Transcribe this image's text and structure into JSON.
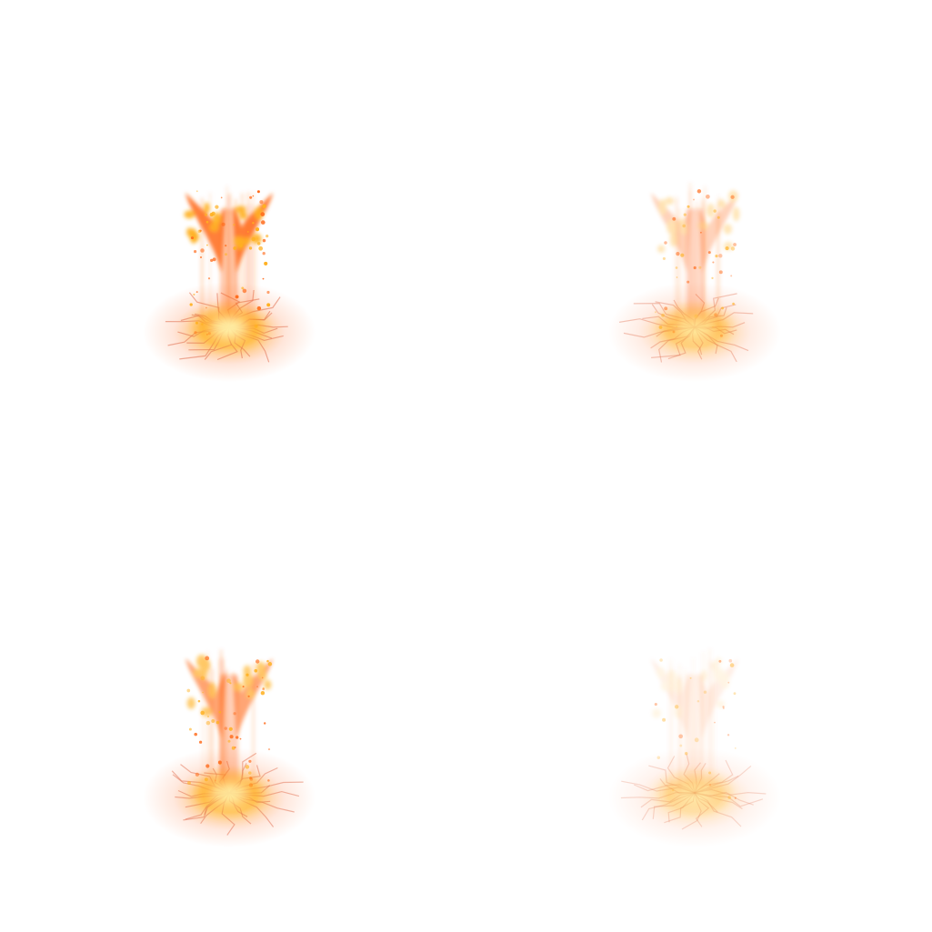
{
  "sprite_sheet": {
    "background": "#ffffff",
    "frames": [
      {
        "id": "frame-1",
        "intensity": 1.0,
        "wings": 1.0,
        "column": 1.0
      },
      {
        "id": "frame-2",
        "intensity": 0.7,
        "wings": 0.35,
        "column": 0.6
      },
      {
        "id": "frame-3",
        "intensity": 0.9,
        "wings": 0.7,
        "column": 0.9
      },
      {
        "id": "frame-4",
        "intensity": 0.45,
        "wings": 0.12,
        "column": 0.25
      }
    ],
    "palette": {
      "core": "#fff6b0",
      "flame": "#ffb020",
      "ember": "#ff6a1a",
      "glow": "#ff9a6a",
      "crack": "#e07050"
    }
  }
}
